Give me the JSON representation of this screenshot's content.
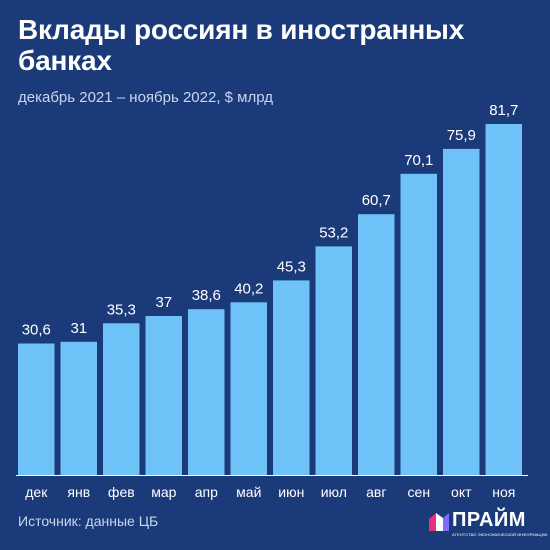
{
  "header": {
    "title": "Вклады россиян в иностранных банках",
    "subtitle": "декабрь 2021 – ноябрь 2022, $ млрд"
  },
  "footer": {
    "source": "Источник: данные ЦБ",
    "logo_text": "ПРАЙМ",
    "logo_tagline": "АГЕНТСТВО ЭКОНОМИЧЕСКОЙ ИНФОРМАЦИИ"
  },
  "colors": {
    "background": "#1b3a7a",
    "bar": "#6ec2f7",
    "text": "#ffffff",
    "axis": "#ffffff",
    "logo_accent": "#e2337a"
  },
  "chart_data": {
    "type": "bar",
    "title": "Вклады россиян в иностранных банках",
    "subtitle": "декабрь 2021 – ноябрь 2022, $ млрд",
    "categories": [
      "дек",
      "янв",
      "фев",
      "мар",
      "апр",
      "май",
      "июн",
      "июл",
      "авг",
      "сен",
      "окт",
      "ноя"
    ],
    "values": [
      30.6,
      31,
      35.3,
      37,
      38.6,
      40.2,
      45.3,
      53.2,
      60.7,
      70.1,
      75.9,
      81.7
    ],
    "labels": [
      "30,6",
      "31",
      "35,3",
      "37",
      "38,6",
      "40,2",
      "45,3",
      "53,2",
      "60,7",
      "70,1",
      "75,9",
      "81,7"
    ],
    "xlabel": "",
    "ylabel": "",
    "ylim": [
      0,
      81.7
    ],
    "grid": false,
    "legend": "none"
  }
}
